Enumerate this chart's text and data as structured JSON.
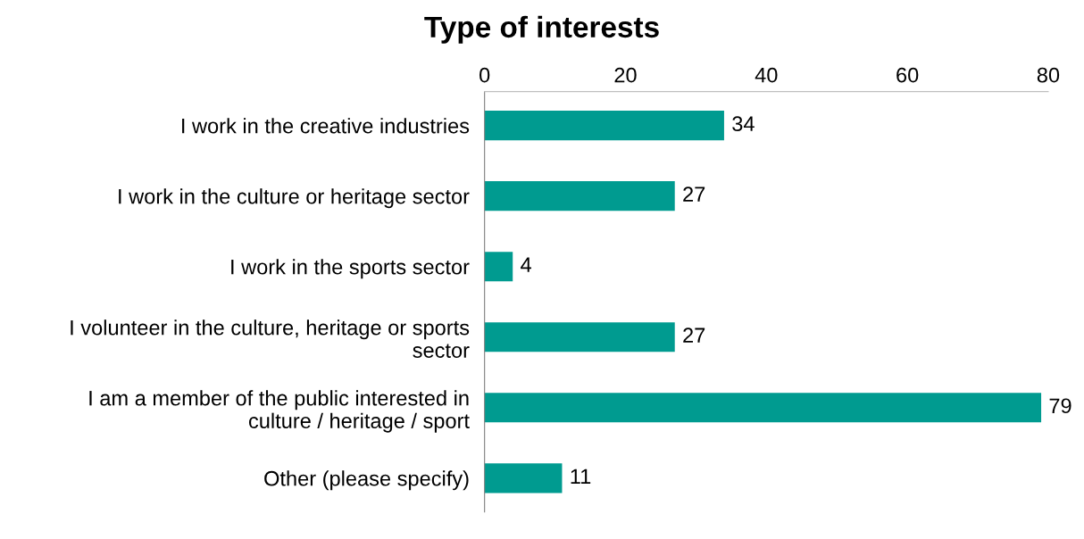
{
  "chart_data": {
    "type": "bar",
    "orientation": "horizontal",
    "title": "Type of interests",
    "categories": [
      "I work in the creative industries",
      "I work in the culture or heritage sector",
      "I work in the sports sector",
      "I volunteer in the culture, heritage or sports\nsector",
      "I am a member of the public interested in\nculture / heritage / sport",
      "Other (please specify)"
    ],
    "values": [
      34,
      27,
      4,
      27,
      79,
      11
    ],
    "color": "#009b90",
    "xlim": [
      0,
      80
    ],
    "xticks": [
      0,
      20,
      40,
      60,
      80
    ],
    "grid": false,
    "data_labels": true
  }
}
